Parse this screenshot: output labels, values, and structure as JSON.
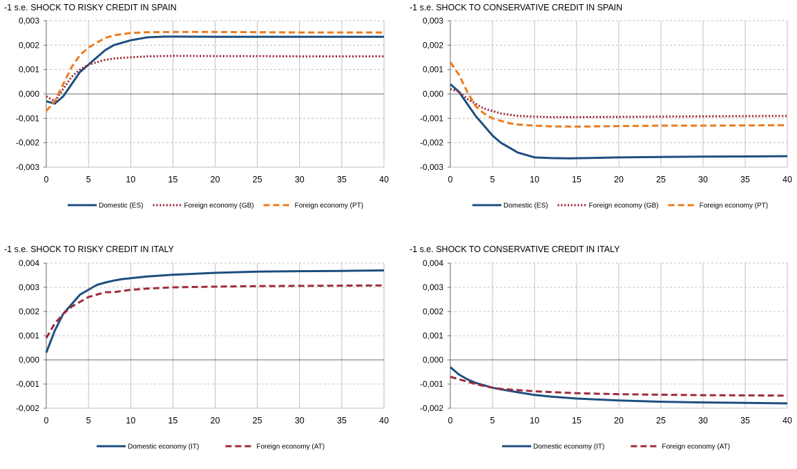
{
  "colors": {
    "navy": "#1c4e80",
    "crimson": "#9e2a3a",
    "orange": "#ec7a1c",
    "grid": "#b0b0b0",
    "axis": "#6a6a6a"
  },
  "chart_data": [
    {
      "type": "line",
      "title": "-1 s.e. SHOCK TO RISKY CREDIT IN SPAIN",
      "xlim": [
        0,
        40
      ],
      "ylim": [
        -0.003,
        0.003
      ],
      "x_ticks": [
        0,
        5,
        10,
        15,
        20,
        25,
        30,
        35,
        40
      ],
      "x_tick_labels": [
        "0",
        "5",
        "10",
        "15",
        "20",
        "25",
        "30",
        "35",
        "40"
      ],
      "y_ticks": [
        -0.003,
        -0.002,
        -0.001,
        0,
        0.001,
        0.002,
        0.003
      ],
      "y_tick_labels": [
        "-0,003",
        "-0,002",
        "-0,001",
        "0,000",
        "0,001",
        "0,002",
        "0,003"
      ],
      "grid": true,
      "legend_position": "bottom",
      "series": [
        {
          "name": "Domestic (ES)",
          "style": "solid",
          "color": "#1c4e80",
          "x": [
            0,
            1,
            2,
            3,
            4,
            5,
            6,
            7,
            8,
            9,
            10,
            12,
            14,
            16,
            20,
            25,
            30,
            35,
            40
          ],
          "y": [
            -0.0003,
            -0.0004,
            -0.0001,
            0.0004,
            0.0009,
            0.0012,
            0.0015,
            0.0018,
            0.002,
            0.0021,
            0.0022,
            0.00232,
            0.00235,
            0.00235,
            0.00234,
            0.00234,
            0.00234,
            0.00234,
            0.00234
          ]
        },
        {
          "name": "Foreign economy (GB)",
          "style": "dotted",
          "color": "#9e2a3a",
          "x": [
            0,
            1,
            2,
            3,
            4,
            5,
            6,
            7,
            8,
            9,
            10,
            12,
            15,
            20,
            25,
            30,
            35,
            40
          ],
          "y": [
            -0.0001,
            -0.0003,
            0.0002,
            0.0007,
            0.001,
            0.0012,
            0.0013,
            0.0014,
            0.00145,
            0.00148,
            0.0015,
            0.00154,
            0.00156,
            0.00155,
            0.00155,
            0.00154,
            0.00154,
            0.00154
          ]
        },
        {
          "name": "Foreign economy (PT)",
          "style": "dashed",
          "color": "#ec7a1c",
          "x": [
            0,
            1,
            2,
            3,
            4,
            5,
            6,
            7,
            8,
            9,
            10,
            12,
            15,
            20,
            25,
            30,
            35,
            40
          ],
          "y": [
            -0.0007,
            -0.0003,
            0.0004,
            0.0011,
            0.0016,
            0.0019,
            0.0021,
            0.0023,
            0.0024,
            0.00245,
            0.0025,
            0.00253,
            0.00254,
            0.00254,
            0.00253,
            0.00252,
            0.00252,
            0.00252
          ]
        }
      ]
    },
    {
      "type": "line",
      "title": "-1 s.e. SHOCK TO CONSERVATIVE CREDIT IN SPAIN",
      "xlim": [
        0,
        40
      ],
      "ylim": [
        -0.003,
        0.003
      ],
      "x_ticks": [
        0,
        5,
        10,
        15,
        20,
        25,
        30,
        35,
        40
      ],
      "x_tick_labels": [
        "0",
        "5",
        "10",
        "15",
        "20",
        "25",
        "30",
        "35",
        "40"
      ],
      "y_ticks": [
        -0.003,
        -0.002,
        -0.001,
        0,
        0.001,
        0.002,
        0.003
      ],
      "y_tick_labels": [
        "-0,003",
        "-0,002",
        "-0,001",
        "0,000",
        "0,001",
        "0,002",
        "0,003"
      ],
      "grid": true,
      "legend_position": "bottom",
      "series": [
        {
          "name": "Domestic (ES)",
          "style": "solid",
          "color": "#1c4e80",
          "x": [
            0,
            1,
            2,
            3,
            4,
            5,
            6,
            7,
            8,
            9,
            10,
            12,
            14,
            16,
            20,
            25,
            30,
            35,
            40
          ],
          "y": [
            0.0004,
            0.0001,
            -0.0004,
            -0.0009,
            -0.0013,
            -0.0017,
            -0.002,
            -0.0022,
            -0.0024,
            -0.0025,
            -0.0026,
            -0.00263,
            -0.00264,
            -0.00263,
            -0.0026,
            -0.00258,
            -0.00257,
            -0.00256,
            -0.00255
          ]
        },
        {
          "name": "Foreign economy (GB)",
          "style": "dotted",
          "color": "#9e2a3a",
          "x": [
            0,
            1,
            2,
            3,
            4,
            5,
            6,
            7,
            8,
            10,
            12,
            15,
            20,
            25,
            30,
            35,
            40
          ],
          "y": [
            0.0002,
            0.0001,
            -0.0002,
            -0.0004,
            -0.0006,
            -0.0007,
            -0.0008,
            -0.00085,
            -0.0009,
            -0.00093,
            -0.00095,
            -0.00095,
            -0.00094,
            -0.00093,
            -0.00092,
            -0.00091,
            -0.0009
          ]
        },
        {
          "name": "Foreign economy (PT)",
          "style": "dashed",
          "color": "#ec7a1c",
          "x": [
            0,
            1,
            2,
            3,
            4,
            5,
            6,
            7,
            8,
            10,
            12,
            15,
            20,
            25,
            30,
            35,
            40
          ],
          "y": [
            0.0013,
            0.0008,
            0.0001,
            -0.0005,
            -0.0008,
            -0.001,
            -0.0011,
            -0.0012,
            -0.00125,
            -0.0013,
            -0.00133,
            -0.00134,
            -0.00132,
            -0.0013,
            -0.0013,
            -0.00129,
            -0.00128
          ]
        }
      ]
    },
    {
      "type": "line",
      "title": "-1 s.e. SHOCK TO RISKY CREDIT IN ITALY",
      "xlim": [
        0,
        40
      ],
      "ylim": [
        -0.002,
        0.004
      ],
      "x_ticks": [
        0,
        5,
        10,
        15,
        20,
        25,
        30,
        35,
        40
      ],
      "x_tick_labels": [
        "0",
        "5",
        "10",
        "15",
        "20",
        "25",
        "30",
        "35",
        "40"
      ],
      "y_ticks": [
        -0.002,
        -0.001,
        0,
        0.001,
        0.002,
        0.003,
        0.004
      ],
      "y_tick_labels": [
        "-0,002",
        "-0,001",
        "0,000",
        "0,001",
        "0,002",
        "0,003",
        "0,004"
      ],
      "grid": true,
      "legend_position": "bottom",
      "series": [
        {
          "name": "Domestic economy (IT)",
          "style": "solid",
          "color": "#1c4e80",
          "x": [
            0,
            1,
            2,
            3,
            4,
            5,
            6,
            7,
            8,
            9,
            10,
            12,
            15,
            20,
            25,
            30,
            35,
            40
          ],
          "y": [
            0.0003,
            0.0012,
            0.0019,
            0.0023,
            0.0027,
            0.0029,
            0.0031,
            0.0032,
            0.00328,
            0.00334,
            0.00338,
            0.00345,
            0.00352,
            0.0036,
            0.00365,
            0.00367,
            0.00368,
            0.0037
          ]
        },
        {
          "name": "Foreign economy  (AT)",
          "style": "dashed",
          "color": "#9e2a3a",
          "x": [
            0,
            1,
            2,
            3,
            4,
            5,
            6,
            7,
            8,
            10,
            12,
            15,
            20,
            25,
            30,
            35,
            40
          ],
          "y": [
            0.0009,
            0.0015,
            0.0019,
            0.0022,
            0.0024,
            0.0026,
            0.0027,
            0.0028,
            0.0028,
            0.0029,
            0.00295,
            0.003,
            0.00303,
            0.00305,
            0.00306,
            0.00307,
            0.00308
          ]
        }
      ]
    },
    {
      "type": "line",
      "title": "-1 s.e. SHOCK TO CONSERVATIVE CREDIT IN ITALY",
      "xlim": [
        0,
        40
      ],
      "ylim": [
        -0.002,
        0.004
      ],
      "x_ticks": [
        0,
        5,
        10,
        15,
        20,
        25,
        30,
        35,
        40
      ],
      "x_tick_labels": [
        "0",
        "5",
        "10",
        "15",
        "20",
        "25",
        "30",
        "35",
        "40"
      ],
      "y_ticks": [
        -0.002,
        -0.001,
        0,
        0.001,
        0.002,
        0.003,
        0.004
      ],
      "y_tick_labels": [
        "-0,002",
        "-0,001",
        "0,000",
        "0,001",
        "0,002",
        "0,003",
        "0,004"
      ],
      "grid": true,
      "legend_position": "bottom",
      "series": [
        {
          "name": "Domestic economy (IT)",
          "style": "solid",
          "color": "#1c4e80",
          "x": [
            0,
            1,
            2,
            3,
            4,
            5,
            6,
            7,
            8,
            10,
            12,
            15,
            20,
            25,
            30,
            35,
            40
          ],
          "y": [
            -0.0003,
            -0.0006,
            -0.0008,
            -0.00095,
            -0.00105,
            -0.00115,
            -0.00122,
            -0.00128,
            -0.00134,
            -0.00145,
            -0.00152,
            -0.0016,
            -0.00168,
            -0.00173,
            -0.00176,
            -0.00178,
            -0.0018
          ]
        },
        {
          "name": "Foreign economy  (AT)",
          "style": "dashed",
          "color": "#9e2a3a",
          "x": [
            0,
            1,
            2,
            3,
            4,
            5,
            6,
            8,
            10,
            12,
            15,
            20,
            25,
            30,
            35,
            40
          ],
          "y": [
            -0.0007,
            -0.0008,
            -0.0009,
            -0.001,
            -0.00108,
            -0.00115,
            -0.0012,
            -0.00125,
            -0.0013,
            -0.00133,
            -0.00138,
            -0.00142,
            -0.00144,
            -0.00146,
            -0.00147,
            -0.00148
          ]
        }
      ]
    }
  ]
}
